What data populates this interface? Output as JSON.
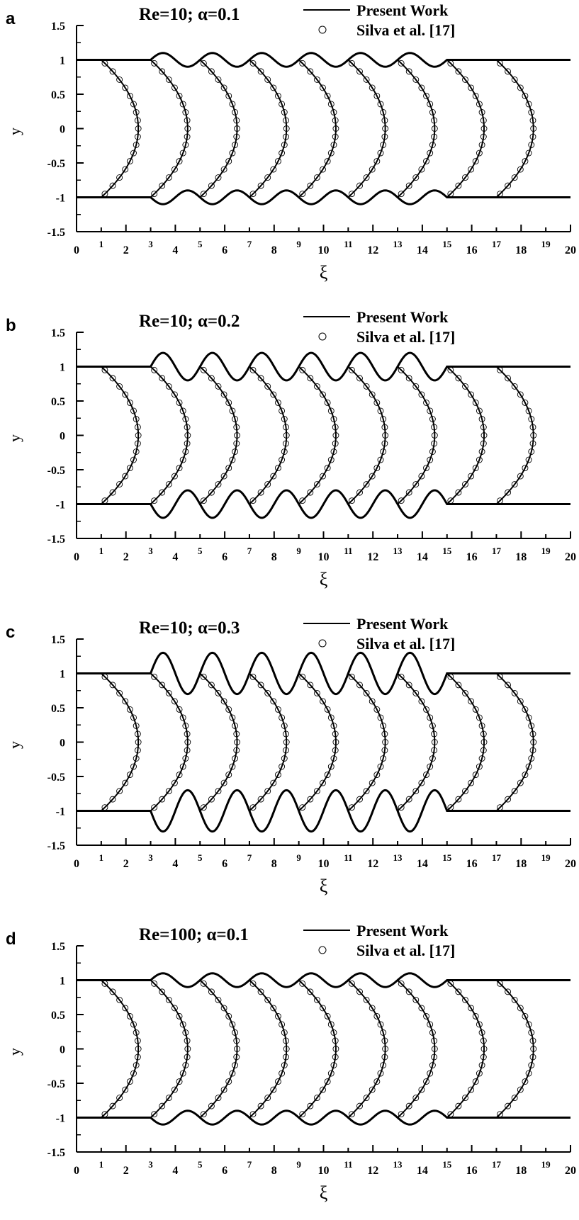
{
  "chart_data": [
    {
      "type": "line",
      "panel": "a",
      "title": "Re=10; α=0.1",
      "xlabel": "ξ",
      "ylabel": "y",
      "xlim": [
        0,
        20
      ],
      "ylim": [
        -1.5,
        1.5
      ],
      "alpha": 0.1,
      "wavy_region": [
        3,
        15
      ],
      "x_ticks": [
        "0",
        "1",
        "2",
        "3",
        "4",
        "5",
        "6",
        "7",
        "8",
        "9",
        "10",
        "11",
        "12",
        "13",
        "14",
        "15",
        "16",
        "17",
        "18",
        "19",
        "20"
      ],
      "y_ticks": [
        "1.5",
        "1",
        "0.5",
        "0",
        "-0.5",
        "-1",
        "-1.5"
      ],
      "profile_starts": [
        1,
        3,
        5,
        7,
        9,
        11,
        13,
        15,
        17
      ],
      "profile_bulge": 1.5,
      "legend": [
        "Present Work",
        "Silva et al. [17]"
      ],
      "legend_position": "top-right"
    },
    {
      "type": "line",
      "panel": "b",
      "title": "Re=10; α=0.2",
      "xlabel": "ξ",
      "ylabel": "y",
      "xlim": [
        0,
        20
      ],
      "ylim": [
        -1.5,
        1.5
      ],
      "alpha": 0.2,
      "wavy_region": [
        3,
        15
      ],
      "x_ticks": [
        "0",
        "1",
        "2",
        "3",
        "4",
        "5",
        "6",
        "7",
        "8",
        "9",
        "10",
        "11",
        "12",
        "13",
        "14",
        "15",
        "16",
        "17",
        "18",
        "19",
        "20"
      ],
      "y_ticks": [
        "1.5",
        "1",
        "0.5",
        "0",
        "-0.5",
        "-1",
        "-1.5"
      ],
      "profile_starts": [
        1,
        3,
        5,
        7,
        9,
        11,
        13,
        15,
        17
      ],
      "profile_bulge": 1.5,
      "legend": [
        "Present Work",
        "Silva et al. [17]"
      ],
      "legend_position": "top-right"
    },
    {
      "type": "line",
      "panel": "c",
      "title": "Re=10; α=0.3",
      "xlabel": "ξ",
      "ylabel": "y",
      "xlim": [
        0,
        20
      ],
      "ylim": [
        -1.5,
        1.5
      ],
      "alpha": 0.3,
      "wavy_region": [
        3,
        15
      ],
      "x_ticks": [
        "0",
        "1",
        "2",
        "3",
        "4",
        "5",
        "6",
        "7",
        "8",
        "9",
        "10",
        "11",
        "12",
        "13",
        "14",
        "15",
        "16",
        "17",
        "18",
        "19",
        "20"
      ],
      "y_ticks": [
        "1.5",
        "1",
        "0.5",
        "0",
        "-0.5",
        "-1",
        "-1.5"
      ],
      "profile_starts": [
        1,
        3,
        5,
        7,
        9,
        11,
        13,
        15,
        17
      ],
      "profile_bulge": 1.5,
      "legend": [
        "Present Work",
        "Silva et al. [17]"
      ],
      "legend_position": "top-right"
    },
    {
      "type": "line",
      "panel": "d",
      "title": "Re=100; α=0.1",
      "xlabel": "ξ",
      "ylabel": "y",
      "xlim": [
        0,
        20
      ],
      "ylim": [
        -1.5,
        1.5
      ],
      "alpha": 0.1,
      "wavy_region": [
        3,
        15
      ],
      "x_ticks": [
        "0",
        "1",
        "2",
        "3",
        "4",
        "5",
        "6",
        "7",
        "8",
        "9",
        "10",
        "11",
        "12",
        "13",
        "14",
        "15",
        "16",
        "17",
        "18",
        "19",
        "20"
      ],
      "y_ticks": [
        "1.5",
        "1",
        "0.5",
        "0",
        "-0.5",
        "-1",
        "-1.5"
      ],
      "profile_starts": [
        1,
        3,
        5,
        7,
        9,
        11,
        13,
        15,
        17
      ],
      "profile_bulge": 1.5,
      "legend": [
        "Present Work",
        "Silva et al. [17]"
      ],
      "legend_position": "top-right"
    }
  ]
}
